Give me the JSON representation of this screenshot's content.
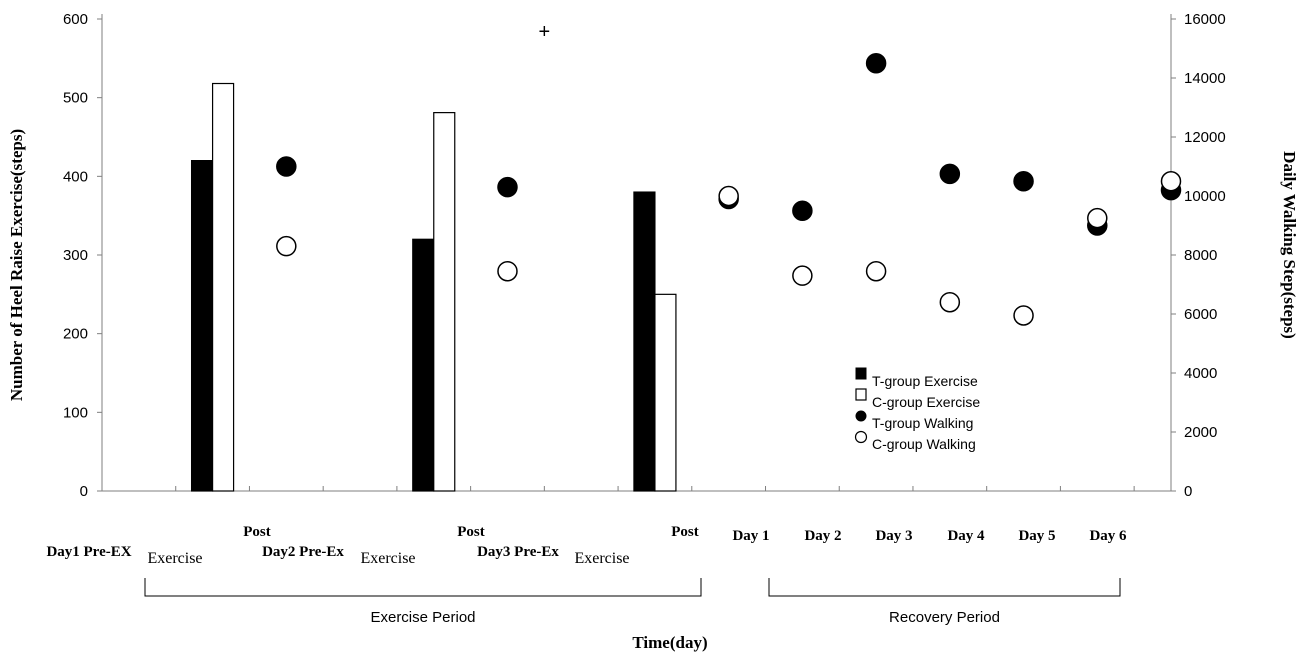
{
  "chart_data": {
    "type": "bar",
    "left_axis": {
      "label": "Number of Heel Raise Exercise(steps)",
      "min": 0,
      "max": 600,
      "ticks": [
        "0",
        "100",
        "200",
        "300",
        "400",
        "500",
        "600"
      ]
    },
    "right_axis": {
      "label": "Daily Walking Step(steps)",
      "min": 0,
      "max": 16000,
      "ticks": [
        "0",
        "2000",
        "4000",
        "6000",
        "8000",
        "10000",
        "12000",
        "14000",
        "16000"
      ]
    },
    "xlabel": "Time(day)",
    "categories": [
      "Day1 Pre-EX",
      "Exercise",
      "Post",
      "Day2 Pre-Ex",
      "Exercise",
      "Post",
      "Day3 Pre-Ex",
      "Exercise",
      "Post",
      "Day 1",
      "Day 2",
      "Day 3",
      "Day 4",
      "Day 5",
      "Day 6"
    ],
    "bar_series": [
      {
        "name": "T-group Exercise",
        "color": "#000000",
        "points": [
          {
            "category_index": 1,
            "value": 420
          },
          {
            "category_index": 4,
            "value": 320
          },
          {
            "category_index": 7,
            "value": 380
          }
        ]
      },
      {
        "name": "C-group Exercise",
        "color": "#ffffff",
        "points": [
          {
            "category_index": 1,
            "value": 518
          },
          {
            "category_index": 4,
            "value": 481
          },
          {
            "category_index": 7,
            "value": 250
          }
        ]
      }
    ],
    "walking_series": [
      {
        "name": "T-group Walking",
        "color": "#000000",
        "points": [
          {
            "category_index": 2,
            "value": 11000
          },
          {
            "category_index": 5,
            "value": 10300
          },
          {
            "category_index": 8,
            "value": 9900
          },
          {
            "category_index": 9,
            "value": 9500
          },
          {
            "category_index": 10,
            "value": 14500
          },
          {
            "category_index": 11,
            "value": 10750
          },
          {
            "category_index": 12,
            "value": 10500
          },
          {
            "category_index": 13,
            "value": 9000
          },
          {
            "category_index": 14,
            "value": 10200
          }
        ]
      },
      {
        "name": "C-group Walking",
        "color": "#ffffff",
        "points": [
          {
            "category_index": 2,
            "value": 8300
          },
          {
            "category_index": 5,
            "value": 7450
          },
          {
            "category_index": 8,
            "value": 10000
          },
          {
            "category_index": 9,
            "value": 7300
          },
          {
            "category_index": 10,
            "value": 7450
          },
          {
            "category_index": 11,
            "value": 6400
          },
          {
            "category_index": 12,
            "value": 5950
          },
          {
            "category_index": 13,
            "value": 9250
          },
          {
            "category_index": 14,
            "value": 10500
          }
        ]
      }
    ],
    "periods": [
      {
        "label": "Exercise Period",
        "from_index": 0,
        "to_index": 8
      },
      {
        "label": "Recovery Period",
        "from_index": 9,
        "to_index": 14
      }
    ],
    "annotations": [
      {
        "text": "+",
        "category_index": 5.5,
        "value_left": 585
      }
    ],
    "legend_position": "lower-right",
    "legend": [
      "T-group Exercise",
      "C-group Exercise",
      "T-group Walking",
      "C-group Walking"
    ]
  }
}
